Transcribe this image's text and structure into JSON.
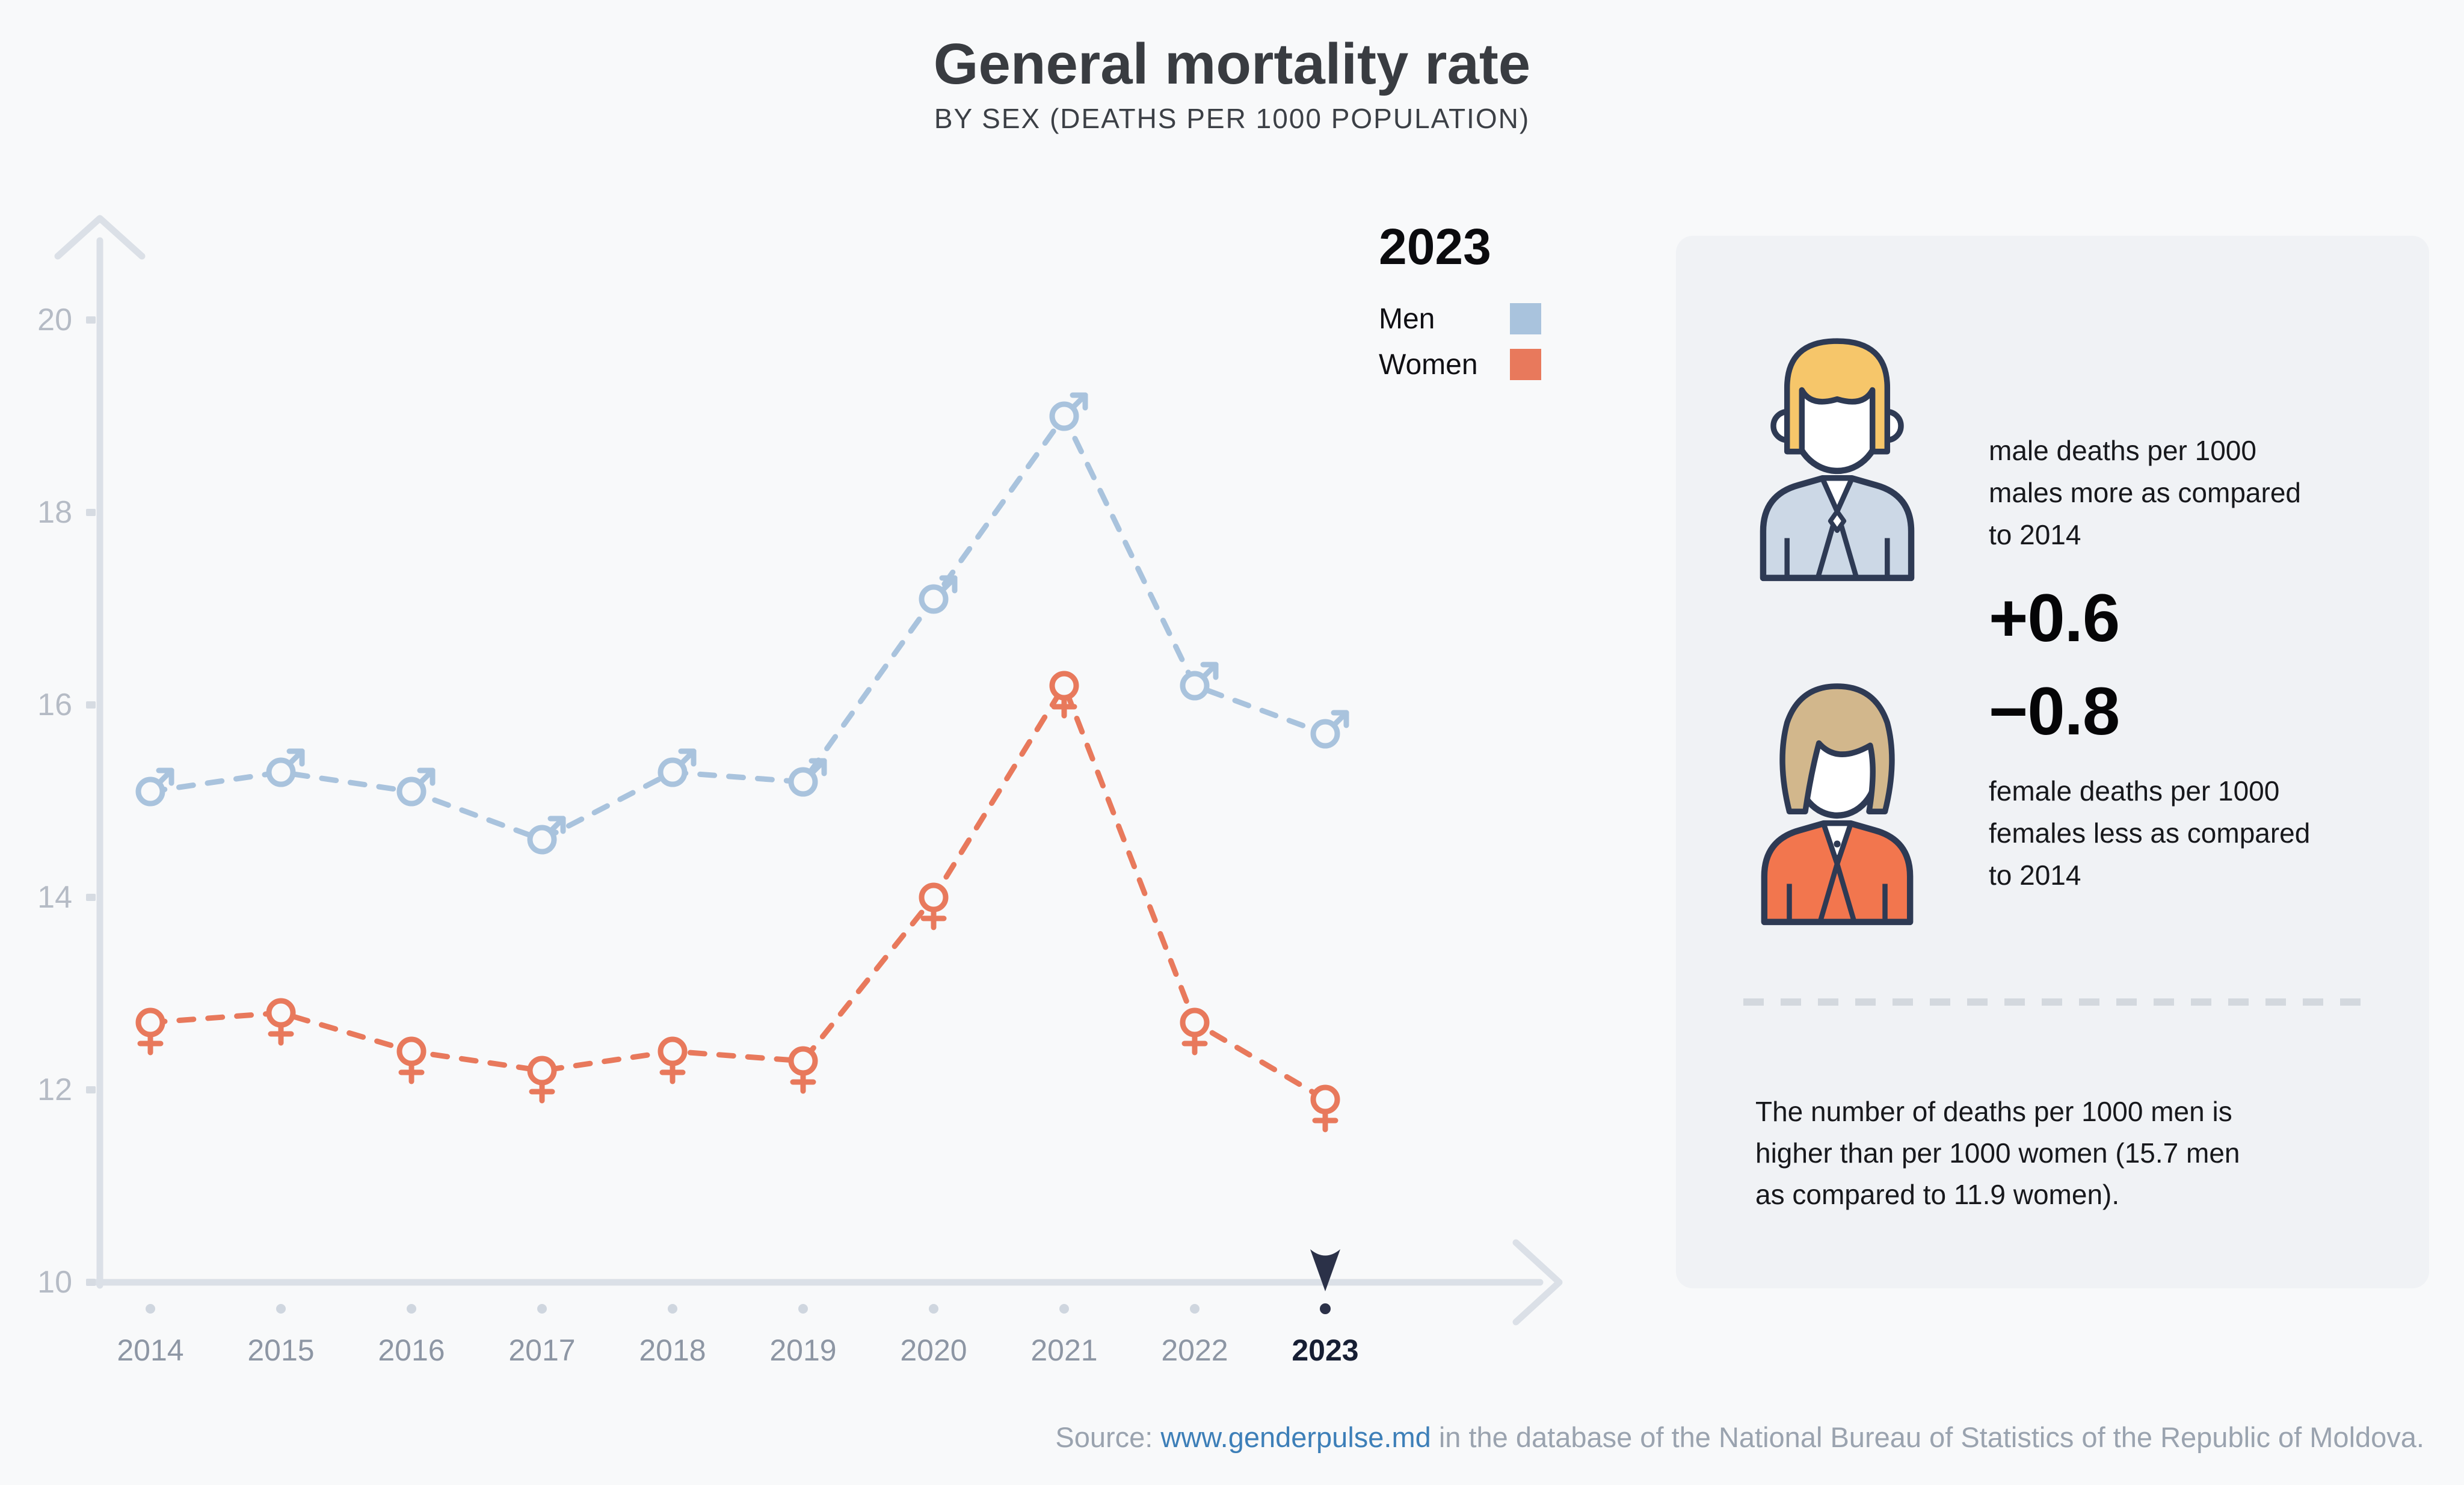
{
  "header": {
    "title": "General mortality rate",
    "subtitle": "BY SEX (DEATHS PER 1000 POPULATION)"
  },
  "legend": {
    "year": "2023",
    "items": [
      {
        "label": "Men",
        "color": "#a9c3dd"
      },
      {
        "label": "Women",
        "color": "#e8795c"
      }
    ]
  },
  "chart_data": {
    "type": "line",
    "title": "General mortality rate by sex (deaths per 1000 population)",
    "x": [
      2014,
      2015,
      2016,
      2017,
      2018,
      2019,
      2020,
      2021,
      2022,
      2023
    ],
    "series": [
      {
        "name": "Men",
        "color": "#a9c3dd",
        "marker": "male",
        "values": [
          15.1,
          15.3,
          15.1,
          14.6,
          15.3,
          15.2,
          17.1,
          19.0,
          16.2,
          15.7
        ]
      },
      {
        "name": "Women",
        "color": "#e8795c",
        "marker": "female",
        "values": [
          12.7,
          12.8,
          12.4,
          12.2,
          12.4,
          12.3,
          14.0,
          16.2,
          12.7,
          11.9
        ]
      }
    ],
    "ylim": [
      10,
      21
    ],
    "yticks": [
      10,
      12,
      14,
      16,
      18,
      20
    ],
    "line_style": "dashed",
    "grid": false,
    "legend_position": "top-right",
    "highlight_year": 2023
  },
  "panel": {
    "stats": [
      {
        "icon": "man-avatar",
        "value": "+0.6",
        "lines": [
          "male deaths per 1000",
          "males more as compared",
          "to 2014"
        ]
      },
      {
        "icon": "woman-avatar",
        "value": "−0.8",
        "lines": [
          "female deaths per 1000",
          "females less as compared",
          "to 2014"
        ]
      }
    ],
    "summary_lines": [
      "The number of deaths per 1000 men is",
      "higher than per 1000 women (15.7 men",
      "as compared to 11.9 women)."
    ]
  },
  "source": {
    "prefix": "Source: ",
    "link": "www.genderpulse.md",
    "suffix": " in the database of the National Bureau of Statistics of the Republic of Moldova."
  },
  "colors": {
    "background": "#f8f9fa",
    "panel": "#f0f2f5",
    "axis": "#dbe0e7",
    "tick": "#d6dbe2",
    "y_label": "#b5bbc5",
    "x_label": "#8d96a4",
    "x_label_active": "#161e33",
    "dot": "#cfd6df",
    "highlight": "#2b3148",
    "title": "#393c41",
    "subtitle": "#3c4046",
    "text": "#17181c",
    "source": "#9aa3af",
    "link": "#3d7fb8",
    "divider": "#d3d8de",
    "avatar_outline": "#2e3a54",
    "man_hair": "#f6c66a",
    "man_suit": "#ccd8e6",
    "woman_hair": "#d2b78c",
    "woman_jacket": "#f2764e"
  }
}
